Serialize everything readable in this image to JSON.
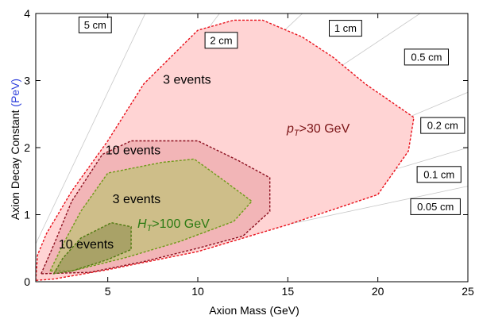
{
  "chart_data": {
    "type": "area",
    "xlabel": "Axion Mass (GeV)",
    "ylabel_main": "Axion Decay Constant ",
    "ylabel_unit": "(PeV)",
    "xlim": [
      1,
      25
    ],
    "ylim": [
      0,
      4
    ],
    "x_ticks": [
      5,
      10,
      15,
      20,
      25
    ],
    "y_ticks": [
      0,
      1,
      2,
      3,
      4
    ],
    "grid": false,
    "decay_length_lines": [
      {
        "label": "5 cm",
        "slope": 0.565,
        "label_x": 4.3,
        "label_y": 3.83
      },
      {
        "label": "2 cm",
        "slope": 0.357,
        "label_x": 11.3,
        "label_y": 3.6
      },
      {
        "label": "1 cm",
        "slope": 0.253,
        "label_x": 18.2,
        "label_y": 3.78
      },
      {
        "label": "0.5 cm",
        "slope": 0.179,
        "label_x": 22.7,
        "label_y": 3.35
      },
      {
        "label": "0.2 cm",
        "slope": 0.113,
        "label_x": 23.6,
        "label_y": 2.33
      },
      {
        "label": "0.1 cm",
        "slope": 0.08,
        "label_x": 23.4,
        "label_y": 1.6
      },
      {
        "label": "0.05 cm",
        "slope": 0.057,
        "label_x": 23.2,
        "label_y": 1.12
      }
    ],
    "regions": [
      {
        "name": "pT>30 GeV, 3 events",
        "fill": "#ffd4d4",
        "stroke": "#e8101a",
        "points": [
          [
            1.0,
            0.02
          ],
          [
            1.1,
            0.4
          ],
          [
            1.6,
            0.72
          ],
          [
            3,
            1.35
          ],
          [
            5,
            2.1
          ],
          [
            7,
            2.95
          ],
          [
            10,
            3.75
          ],
          [
            12,
            3.9
          ],
          [
            13.6,
            3.9
          ],
          [
            15.8,
            3.65
          ],
          [
            17.5,
            3.35
          ],
          [
            19.3,
            2.95
          ],
          [
            22,
            2.45
          ],
          [
            21.7,
            1.95
          ],
          [
            20,
            1.3
          ],
          [
            15,
            0.85
          ],
          [
            10,
            0.45
          ],
          [
            5,
            0.18
          ],
          [
            2,
            0.04
          ],
          [
            1.0,
            0.02
          ]
        ]
      },
      {
        "name": "10 events (pT)",
        "fill": "#e89a9e",
        "fill_opacity": 0.55,
        "stroke": "#8b0f1e",
        "points": [
          [
            1.3,
            0.12
          ],
          [
            2,
            0.55
          ],
          [
            3,
            1.2
          ],
          [
            4.7,
            1.9
          ],
          [
            6.3,
            2.1
          ],
          [
            10,
            2.1
          ],
          [
            12.3,
            1.8
          ],
          [
            14,
            1.55
          ],
          [
            14,
            1.05
          ],
          [
            12.5,
            0.68
          ],
          [
            10,
            0.5
          ],
          [
            7,
            0.3
          ],
          [
            4,
            0.14
          ],
          [
            1.3,
            0.12
          ]
        ]
      },
      {
        "name": "HT>100 GeV, 3 events",
        "fill": "#c2c27a",
        "fill_opacity": 0.75,
        "stroke": "#6f9a1a",
        "points": [
          [
            1.8,
            0.16
          ],
          [
            2.5,
            0.55
          ],
          [
            3.5,
            1.05
          ],
          [
            5,
            1.62
          ],
          [
            8,
            1.78
          ],
          [
            9.8,
            1.83
          ],
          [
            11.5,
            1.5
          ],
          [
            13,
            1.2
          ],
          [
            12,
            0.9
          ],
          [
            9,
            0.6
          ],
          [
            6,
            0.36
          ],
          [
            3,
            0.16
          ],
          [
            1.8,
            0.16
          ]
        ]
      },
      {
        "name": "HT 10 events",
        "fill": "#8a8a4a",
        "fill_opacity": 0.55,
        "stroke": "#4f7a10",
        "points": [
          [
            2,
            0.12
          ],
          [
            2.5,
            0.35
          ],
          [
            3.5,
            0.65
          ],
          [
            5.2,
            0.88
          ],
          [
            6.3,
            0.82
          ],
          [
            6.3,
            0.48
          ],
          [
            5,
            0.33
          ],
          [
            3,
            0.16
          ],
          [
            2,
            0.12
          ]
        ]
      }
    ],
    "annotations": [
      {
        "label": "3 events",
        "x": 9.4,
        "y": 2.95,
        "color": "#000000"
      },
      {
        "label": "10 events",
        "x": 6.4,
        "y": 1.9,
        "color": "#000000"
      },
      {
        "label": "3 events",
        "x": 6.6,
        "y": 1.17,
        "color": "#000000"
      },
      {
        "label": "10 events",
        "x": 3.8,
        "y": 0.5,
        "color": "#000000"
      }
    ],
    "cut_labels": {
      "pt_main": "p",
      "pt_sub": "T",
      "pt_rest": ">30 GeV",
      "ht_main": "H",
      "ht_sub": "T",
      "ht_rest": ">100 GeV"
    }
  }
}
